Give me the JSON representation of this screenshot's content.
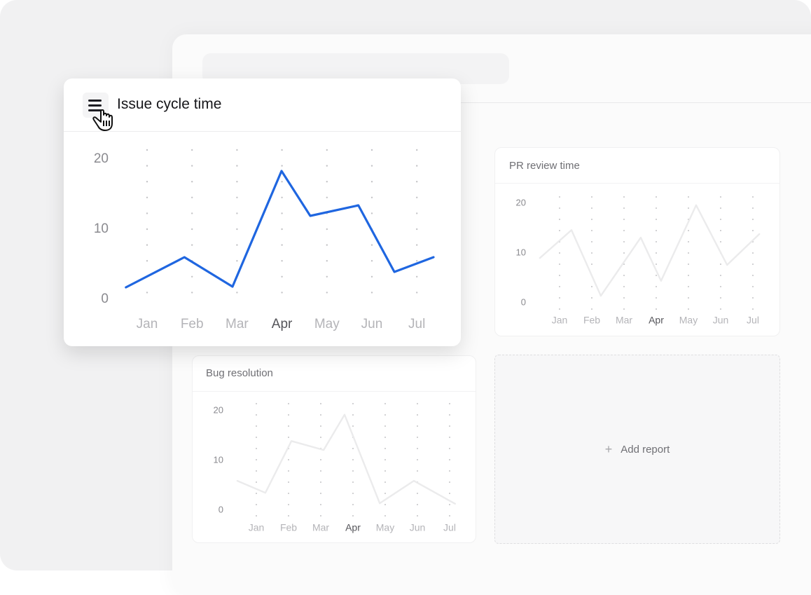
{
  "colors": {
    "accent": "#1f66e0",
    "faded_line": "#ebebec",
    "background": "#f1f1f2"
  },
  "main_report": {
    "title": "Issue cycle time",
    "menu_icon": "hamburger-menu-icon",
    "cursor_icon": "hand-pointer-icon"
  },
  "pr_report": {
    "title": "PR review time"
  },
  "bug_report": {
    "title": "Bug resolution"
  },
  "add_report": {
    "icon": "plus-icon",
    "plus": "+",
    "label": "Add report"
  },
  "chart_data": [
    {
      "type": "line",
      "title": "Issue cycle time",
      "categories": [
        "Jan",
        "Feb",
        "Mar",
        "Apr",
        "May",
        "Jun",
        "Jul"
      ],
      "highlight_category": "Apr",
      "yticks": [
        0,
        10,
        20
      ],
      "ylim": [
        0,
        20
      ],
      "grid": "dotted vertical",
      "x_note": "x in month index units (0 = Jan)",
      "points": [
        [
          -0.47,
          1.7
        ],
        [
          0.83,
          6.0
        ],
        [
          1.9,
          1.8
        ],
        [
          2.99,
          18.3
        ],
        [
          3.63,
          11.9
        ],
        [
          4.7,
          13.4
        ],
        [
          5.5,
          3.9
        ],
        [
          6.37,
          6.0
        ]
      ],
      "color": "#1f66e0"
    },
    {
      "type": "line",
      "title": "PR review time",
      "categories": [
        "Jan",
        "Feb",
        "Mar",
        "Apr",
        "May",
        "Jun",
        "Jul"
      ],
      "highlight_category": "Apr",
      "yticks": [
        0,
        10,
        20
      ],
      "ylim": [
        0,
        20
      ],
      "grid": "dotted vertical",
      "points": [
        [
          -0.61,
          9.0
        ],
        [
          0.37,
          14.6
        ],
        [
          1.28,
          1.4
        ],
        [
          2.52,
          13.1
        ],
        [
          3.15,
          4.4
        ],
        [
          4.24,
          19.6
        ],
        [
          5.2,
          7.6
        ],
        [
          6.2,
          13.8
        ]
      ],
      "color": "#ebebec"
    },
    {
      "type": "line",
      "title": "Bug resolution",
      "categories": [
        "Jan",
        "Feb",
        "Mar",
        "Apr",
        "May",
        "Jun",
        "Jul"
      ],
      "highlight_category": "Apr",
      "yticks": [
        0,
        10,
        20
      ],
      "ylim": [
        0,
        20
      ],
      "grid": "dotted vertical",
      "points": [
        [
          -0.59,
          5.9
        ],
        [
          0.28,
          3.5
        ],
        [
          1.09,
          13.9
        ],
        [
          2.09,
          12.1
        ],
        [
          2.74,
          19.2
        ],
        [
          3.83,
          1.4
        ],
        [
          4.89,
          5.9
        ],
        [
          6.17,
          1.3
        ]
      ],
      "color": "#ebebec"
    }
  ]
}
